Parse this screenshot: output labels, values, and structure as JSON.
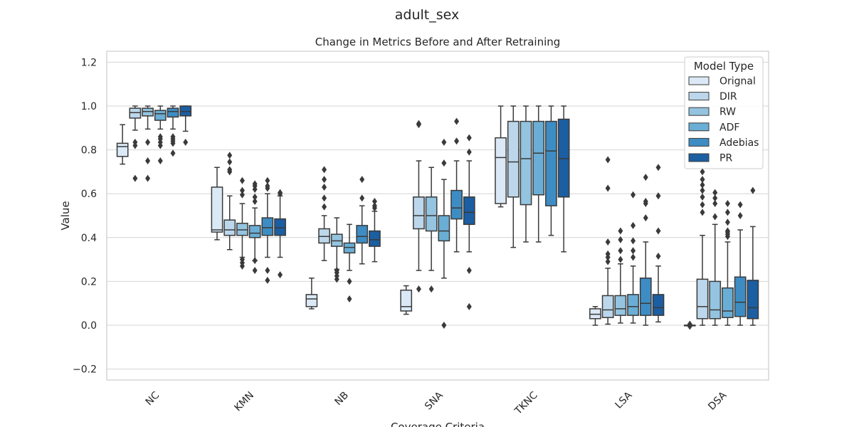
{
  "chart_data": {
    "type": "box",
    "suptitle": "adult_sex",
    "title": "Change in Metrics Before and After Retraining",
    "xlabel": "Coverage Criteria",
    "ylabel": "Value",
    "ylim": [
      -0.25,
      1.25
    ],
    "yticks": [
      -0.2,
      0.0,
      0.2,
      0.4,
      0.6,
      0.8,
      1.0,
      1.2
    ],
    "ytick_labels": [
      "−0.2",
      "0.0",
      "0.2",
      "0.4",
      "0.6",
      "0.8",
      "1.0",
      "1.2"
    ],
    "grid": true,
    "legend": {
      "title": "Model Type",
      "placement": "top-right"
    },
    "categories": [
      "NC",
      "KMN",
      "NB",
      "SNA",
      "TKNC",
      "LSA",
      "DSA"
    ],
    "series": [
      {
        "name": "Orignal",
        "color": "#dbe9f6",
        "boxes": [
          {
            "wlo": 0.735,
            "q1": 0.77,
            "med": 0.815,
            "q3": 0.83,
            "whi": 0.915,
            "fliers": []
          },
          {
            "wlo": 0.39,
            "q1": 0.425,
            "med": 0.435,
            "q3": 0.63,
            "whi": 0.72,
            "fliers": []
          },
          {
            "wlo": 0.075,
            "q1": 0.085,
            "med": 0.12,
            "q3": 0.14,
            "whi": 0.215,
            "fliers": []
          },
          {
            "wlo": 0.05,
            "q1": 0.065,
            "med": 0.085,
            "q3": 0.16,
            "whi": 0.18,
            "fliers": []
          },
          {
            "wlo": 0.54,
            "q1": 0.555,
            "med": 0.765,
            "q3": 0.855,
            "whi": 1.0,
            "fliers": []
          },
          {
            "wlo": 0.0,
            "q1": 0.03,
            "med": 0.05,
            "q3": 0.075,
            "whi": 0.085,
            "fliers": []
          },
          {
            "wlo": 0.0,
            "q1": 0.0,
            "med": 0.0,
            "q3": 0.0,
            "whi": 0.0,
            "fliers": [
              0.0,
              -0.005,
              0.005
            ]
          }
        ]
      },
      {
        "name": "DIR",
        "color": "#bcd7eb",
        "boxes": [
          {
            "wlo": 0.89,
            "q1": 0.945,
            "med": 0.97,
            "q3": 0.99,
            "whi": 1.0,
            "fliers": [
              0.67,
              0.82,
              0.835
            ]
          },
          {
            "wlo": 0.345,
            "q1": 0.41,
            "med": 0.435,
            "q3": 0.48,
            "whi": 0.59,
            "fliers": [
              0.7,
              0.71,
              0.745,
              0.775
            ]
          },
          {
            "wlo": 0.295,
            "q1": 0.375,
            "med": 0.405,
            "q3": 0.44,
            "whi": 0.5,
            "fliers": [
              0.54,
              0.58,
              0.63,
              0.665,
              0.71
            ]
          },
          {
            "wlo": 0.25,
            "q1": 0.44,
            "med": 0.5,
            "q3": 0.585,
            "whi": 0.75,
            "fliers": [
              0.165,
              0.915,
              0.92
            ]
          },
          {
            "wlo": 0.355,
            "q1": 0.585,
            "med": 0.745,
            "q3": 0.93,
            "whi": 1.0,
            "fliers": []
          },
          {
            "wlo": 0.005,
            "q1": 0.035,
            "med": 0.07,
            "q3": 0.135,
            "whi": 0.26,
            "fliers": [
              0.29,
              0.31,
              0.325,
              0.38,
              0.625,
              0.755
            ]
          },
          {
            "wlo": 0.0,
            "q1": 0.03,
            "med": 0.085,
            "q3": 0.21,
            "whi": 0.41,
            "fliers": [
              0.515,
              0.55,
              0.585,
              0.615,
              0.64,
              0.665,
              0.7
            ]
          }
        ]
      },
      {
        "name": "RW",
        "color": "#94c4df",
        "boxes": [
          {
            "wlo": 0.895,
            "q1": 0.955,
            "med": 0.975,
            "q3": 0.99,
            "whi": 1.0,
            "fliers": [
              0.67,
              0.75,
              0.835
            ]
          },
          {
            "wlo": 0.31,
            "q1": 0.41,
            "med": 0.435,
            "q3": 0.465,
            "whi": 0.555,
            "fliers": [
              0.27,
              0.285,
              0.3,
              0.595,
              0.615,
              0.66
            ]
          },
          {
            "wlo": 0.255,
            "q1": 0.36,
            "med": 0.385,
            "q3": 0.415,
            "whi": 0.49,
            "fliers": [
              0.21,
              0.225,
              0.24,
              0.25
            ]
          },
          {
            "wlo": 0.25,
            "q1": 0.43,
            "med": 0.5,
            "q3": 0.585,
            "whi": 0.72,
            "fliers": [
              0.165
            ]
          },
          {
            "wlo": 0.38,
            "q1": 0.55,
            "med": 0.76,
            "q3": 0.93,
            "whi": 1.0,
            "fliers": []
          },
          {
            "wlo": 0.01,
            "q1": 0.045,
            "med": 0.075,
            "q3": 0.135,
            "whi": 0.28,
            "fliers": [
              0.3,
              0.34,
              0.39,
              0.43
            ]
          },
          {
            "wlo": 0.0,
            "q1": 0.03,
            "med": 0.07,
            "q3": 0.2,
            "whi": 0.46,
            "fliers": [
              0.495,
              0.555,
              0.58,
              0.605
            ]
          }
        ]
      },
      {
        "name": "ADF",
        "color": "#6aaed6",
        "boxes": [
          {
            "wlo": 0.895,
            "q1": 0.935,
            "med": 0.965,
            "q3": 0.98,
            "whi": 1.0,
            "fliers": [
              0.75,
              0.82,
              0.835,
              0.85,
              0.86
            ]
          },
          {
            "wlo": 0.295,
            "q1": 0.4,
            "med": 0.42,
            "q3": 0.455,
            "whi": 0.535,
            "fliers": [
              0.25,
              0.295,
              0.565,
              0.585,
              0.62,
              0.635,
              0.645
            ]
          },
          {
            "wlo": 0.25,
            "q1": 0.33,
            "med": 0.355,
            "q3": 0.375,
            "whi": 0.46,
            "fliers": [
              0.2,
              0.12
            ]
          },
          {
            "wlo": 0.215,
            "q1": 0.385,
            "med": 0.43,
            "q3": 0.5,
            "whi": 0.665,
            "fliers": [
              0.0,
              0.74,
              0.835
            ]
          },
          {
            "wlo": 0.38,
            "q1": 0.595,
            "med": 0.785,
            "q3": 0.93,
            "whi": 1.0,
            "fliers": []
          },
          {
            "wlo": 0.01,
            "q1": 0.045,
            "med": 0.085,
            "q3": 0.14,
            "whi": 0.27,
            "fliers": [
              0.31,
              0.34,
              0.385,
              0.455,
              0.595
            ]
          },
          {
            "wlo": 0.0,
            "q1": 0.035,
            "med": 0.065,
            "q3": 0.17,
            "whi": 0.38,
            "fliers": [
              0.405,
              0.415,
              0.425,
              0.43,
              0.47,
              0.515,
              0.555
            ]
          }
        ]
      },
      {
        "name": "Adebias",
        "color": "#3d8dc4",
        "boxes": [
          {
            "wlo": 0.895,
            "q1": 0.95,
            "med": 0.975,
            "q3": 0.99,
            "whi": 1.0,
            "fliers": [
              0.785,
              0.83,
              0.84,
              0.85,
              0.86
            ]
          },
          {
            "wlo": 0.31,
            "q1": 0.41,
            "med": 0.445,
            "q3": 0.49,
            "whi": 0.6,
            "fliers": [
              0.205,
              0.25,
              0.625,
              0.635,
              0.66
            ]
          },
          {
            "wlo": 0.28,
            "q1": 0.375,
            "med": 0.405,
            "q3": 0.455,
            "whi": 0.545,
            "fliers": [
              0.58,
              0.665
            ]
          },
          {
            "wlo": 0.335,
            "q1": 0.485,
            "med": 0.535,
            "q3": 0.615,
            "whi": 0.75,
            "fliers": [
              0.84,
              0.93
            ]
          },
          {
            "wlo": 0.41,
            "q1": 0.545,
            "med": 0.795,
            "q3": 0.93,
            "whi": 1.0,
            "fliers": []
          },
          {
            "wlo": 0.0,
            "q1": 0.045,
            "med": 0.1,
            "q3": 0.215,
            "whi": 0.38,
            "fliers": [
              0.49,
              0.555,
              0.565,
              0.675
            ]
          },
          {
            "wlo": 0.0,
            "q1": 0.04,
            "med": 0.105,
            "q3": 0.22,
            "whi": 0.435,
            "fliers": [
              0.5,
              0.55
            ]
          }
        ]
      },
      {
        "name": "PR",
        "color": "#1b5ea1",
        "boxes": [
          {
            "wlo": 0.885,
            "q1": 0.955,
            "med": 0.975,
            "q3": 1.0,
            "whi": 1.0,
            "fliers": [
              0.835
            ]
          },
          {
            "wlo": 0.31,
            "q1": 0.41,
            "med": 0.445,
            "q3": 0.485,
            "whi": 0.59,
            "fliers": [
              0.23,
              0.6,
              0.605
            ]
          },
          {
            "wlo": 0.29,
            "q1": 0.36,
            "med": 0.39,
            "q3": 0.43,
            "whi": 0.52,
            "fliers": [
              0.535,
              0.545,
              0.565
            ]
          },
          {
            "wlo": 0.335,
            "q1": 0.46,
            "med": 0.515,
            "q3": 0.585,
            "whi": 0.75,
            "fliers": [
              0.085,
              0.25,
              0.79,
              0.855
            ]
          },
          {
            "wlo": 0.335,
            "q1": 0.585,
            "med": 0.76,
            "q3": 0.94,
            "whi": 1.0,
            "fliers": []
          },
          {
            "wlo": 0.015,
            "q1": 0.045,
            "med": 0.08,
            "q3": 0.14,
            "whi": 0.27,
            "fliers": [
              0.315,
              0.43,
              0.59,
              0.72
            ]
          },
          {
            "wlo": 0.0,
            "q1": 0.03,
            "med": 0.08,
            "q3": 0.205,
            "whi": 0.45,
            "fliers": [
              0.615
            ]
          }
        ]
      }
    ]
  }
}
